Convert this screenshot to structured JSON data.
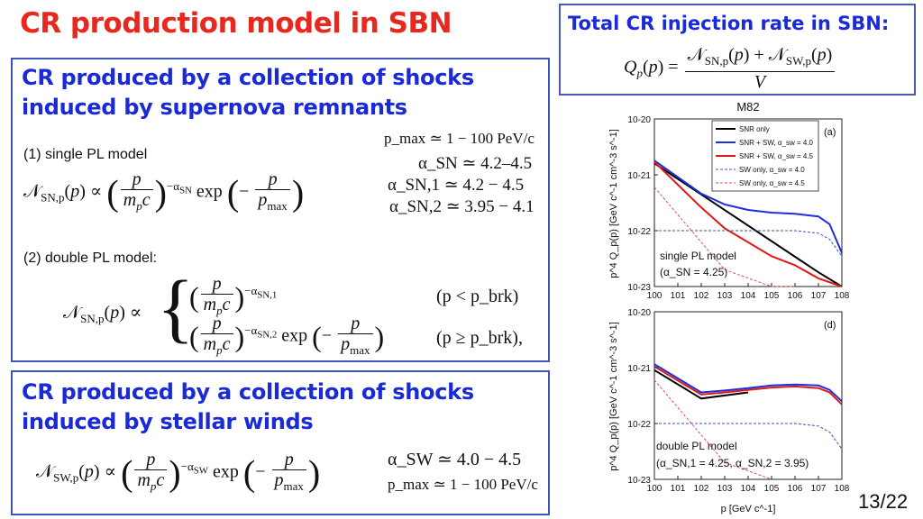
{
  "slide": {
    "title": "CR production model in SBN",
    "page_number": "13/22"
  },
  "rate_box": {
    "heading": "Total CR injection rate in SBN:",
    "formula": "Q_p(p) = [N_SN,p(p) + N_SW,p(p)] / V"
  },
  "snr_box": {
    "heading_line1": "CR produced by a collection of shocks",
    "heading_line2": "induced by supernova remnants",
    "single_label": "(1) single PL model",
    "double_label": "(2) double PL model:",
    "params": {
      "pmax": "p_max ≃ 1 − 100 PeV/c",
      "alpha_sn": "α_SN ≃ 4.2–4.5",
      "alpha_sn1": "α_SN,1 ≃ 4.2 − 4.5",
      "alpha_sn2": "α_SN,2 ≃ 3.95 − 4.1"
    },
    "cond_lt": "(p < p_brk)",
    "cond_ge": "(p ≥ p_brk),"
  },
  "sw_box": {
    "heading_line1": "CR produced by a collection of shocks",
    "heading_line2": "induced by stellar winds",
    "params": {
      "alpha_sw": "α_SW ≃ 4.0 − 4.5",
      "pmax": "p_max ≃ 1 − 100 PeV/c"
    }
  },
  "chart_data": [
    {
      "type": "line",
      "title": "M82",
      "panel_label": "(a)",
      "xlabel": "p [GeV c^-1]",
      "ylabel": "p^4 Q_p(p) [GeV c^-1 cm^-3 s^-1]",
      "xscale": "log",
      "yscale": "log",
      "xlim": [
        1,
        100000000
      ],
      "ylim": [
        1e-23,
        1e-20
      ],
      "x_ticks": [
        "10^0",
        "10^1",
        "10^2",
        "10^3",
        "10^4",
        "10^5",
        "10^6",
        "10^7",
        "10^8"
      ],
      "y_ticks": [
        "10^-20",
        "10^-21",
        "10^-22",
        "10^-23"
      ],
      "annotation": [
        "single PL model",
        "(α_SN = 4.25)"
      ],
      "legend": [
        "SNR only",
        "SNR + SW, α_sw = 4.0",
        "SNR + SW, α_sw = 4.5",
        "SW only, α_sw = 4.0",
        "SW only, α_sw = 4.5"
      ],
      "series": [
        {
          "name": "SNR only",
          "color": "#000000",
          "dash": false,
          "x": [
            1,
            10000000.0,
            100000000.0
          ],
          "y": [
            1.6e-21,
            1.8e-23,
            6e-24
          ]
        },
        {
          "name": "SNR + SW, α_sw = 4.0",
          "color": "#1f2ee0",
          "dash": false,
          "x": [
            1,
            100,
            1000,
            10000,
            100000,
            1000000,
            10000000,
            30000000,
            100000000
          ],
          "y": [
            1.8e-21,
            4.6e-22,
            2.95e-22,
            2.35e-22,
            2.1e-22,
            2e-22,
            1.8e-22,
            1.3e-22,
            4e-23
          ]
        },
        {
          "name": "SNR + SW, α_sw = 4.5",
          "color": "#e01818",
          "dash": false,
          "x": [
            1,
            100,
            1000,
            100000,
            1000000,
            10000000,
            100000000
          ],
          "y": [
            1.7e-21,
            2.6e-22,
            1.1e-22,
            3.5e-23,
            2.4e-23,
            1.4e-23,
            8e-24
          ]
        },
        {
          "name": "SW only, α_sw = 4.0",
          "color": "#3b4fc4",
          "dash": true,
          "x": [
            1,
            1000000,
            10000000,
            30000000,
            100000000
          ],
          "y": [
            1e-22,
            1e-22,
            9e-23,
            7e-23,
            3.5e-23
          ]
        },
        {
          "name": "SW only, α_sw = 4.5",
          "color": "#e05050",
          "dash": true,
          "x": [
            1,
            1000,
            100000,
            1000000
          ],
          "y": [
            6e-22,
            2e-23,
            1e-23,
            1e-23
          ]
        }
      ]
    },
    {
      "type": "line",
      "panel_label": "(d)",
      "xlabel": "p [GeV c^-1]",
      "ylabel": "p^4 Q_p(p) [GeV c^-1 cm^-3 s^-1]",
      "xscale": "log",
      "yscale": "log",
      "xlim": [
        1,
        100000000
      ],
      "ylim": [
        1e-23,
        1e-20
      ],
      "x_ticks": [
        "10^0",
        "10^1",
        "10^2",
        "10^3",
        "10^4",
        "10^5",
        "10^6",
        "10^7",
        "10^8"
      ],
      "y_ticks": [
        "10^-20",
        "10^-21",
        "10^-22",
        "10^-23"
      ],
      "annotation": [
        "double PL model",
        "(α_SN,1 = 4.25, α_SN,2 = 3.95)"
      ],
      "series": [
        {
          "name": "SNR only",
          "color": "#000000",
          "dash": false,
          "x": [
            1,
            100,
            10000
          ],
          "y": [
            9e-22,
            2.8e-22,
            3.6e-22
          ]
        },
        {
          "name": "SNR + SW, α_sw = 4.0",
          "color": "#1f2ee0",
          "dash": false,
          "x": [
            1,
            100,
            1000,
            10000,
            100000,
            1000000,
            10000000,
            30000000,
            100000000
          ],
          "y": [
            1.15e-21,
            3.6e-22,
            3.9e-22,
            4.3e-22,
            4.8e-22,
            5e-22,
            4.8e-22,
            4e-22,
            2.5e-22
          ]
        },
        {
          "name": "SNR + SW, α_sw = 4.5",
          "color": "#e01818",
          "dash": false,
          "x": [
            1,
            100,
            1000,
            10000,
            100000,
            1000000,
            10000000,
            30000000,
            100000000
          ],
          "y": [
            1.05e-21,
            3.3e-22,
            3.6e-22,
            4e-22,
            4.4e-22,
            4.6e-22,
            4.3e-22,
            3.6e-22,
            2.2e-22
          ]
        },
        {
          "name": "SW only, α_sw = 4.0",
          "color": "#3b4fc4",
          "dash": true,
          "x": [
            1,
            1000000,
            10000000,
            30000000,
            100000000
          ],
          "y": [
            1e-22,
            1e-22,
            9e-23,
            7e-23,
            3.5e-23
          ]
        },
        {
          "name": "SW only, α_sw = 4.5",
          "color": "#e05050",
          "dash": true,
          "x": [
            1,
            1000,
            100000
          ],
          "y": [
            6e-22,
            2e-23,
            1e-23
          ]
        }
      ]
    }
  ]
}
